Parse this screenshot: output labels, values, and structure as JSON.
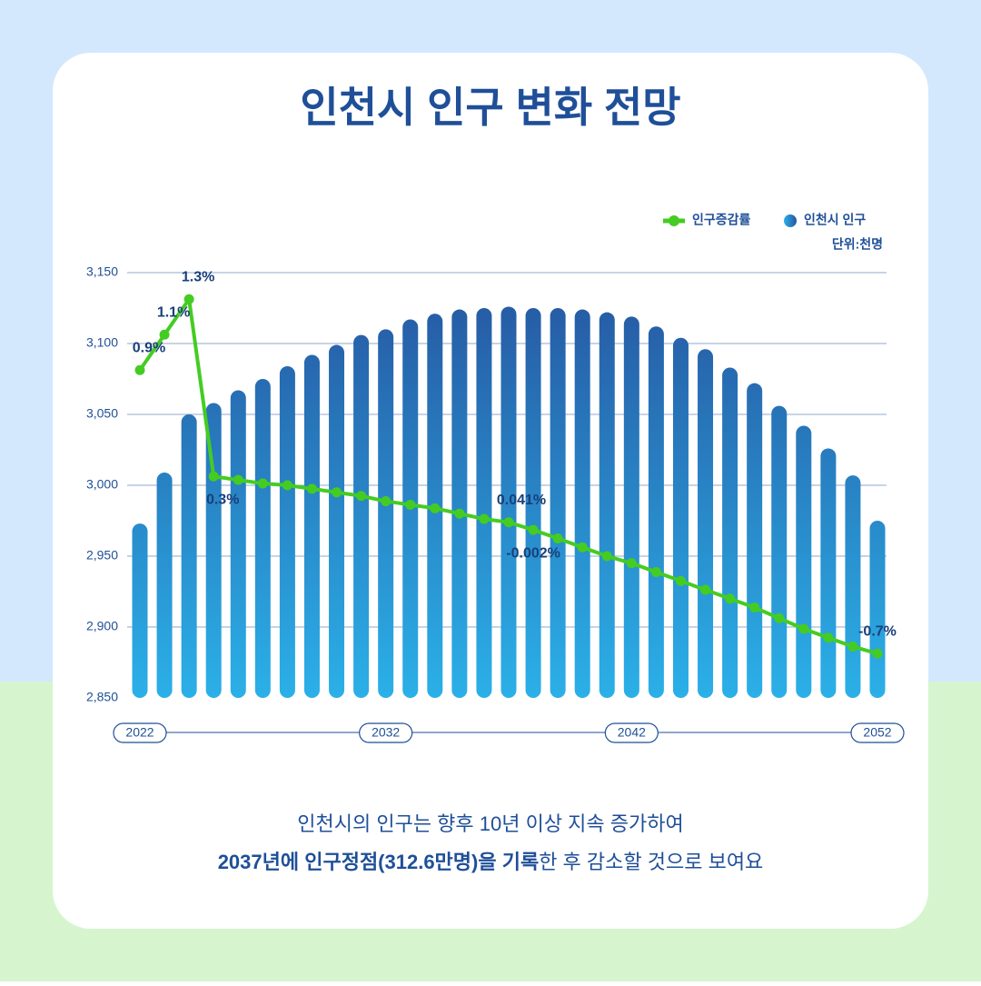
{
  "chart_data": {
    "type": "bar",
    "title": "인천시 인구 변화 전망",
    "unit_label": "단위:천명",
    "categories": [
      "2022",
      null,
      null,
      null,
      null,
      null,
      null,
      null,
      null,
      null,
      "2032",
      null,
      null,
      null,
      null,
      null,
      null,
      null,
      null,
      null,
      "2042",
      null,
      null,
      null,
      null,
      null,
      null,
      null,
      null,
      null,
      "2052"
    ],
    "series": [
      {
        "name": "인구증감률",
        "type": "line",
        "axis": "y2",
        "color": "#44cc22",
        "values": [
          0.9,
          1.1,
          1.3,
          0.3,
          0.28,
          0.26,
          0.25,
          0.23,
          0.21,
          0.19,
          0.16,
          0.14,
          0.12,
          0.09,
          0.06,
          0.041,
          -0.002,
          -0.05,
          -0.1,
          -0.15,
          -0.19,
          -0.24,
          -0.29,
          -0.34,
          -0.39,
          -0.44,
          -0.5,
          -0.56,
          -0.61,
          -0.66,
          -0.7
        ],
        "value_labels": [
          "0.9%",
          "1.1%",
          "1.3%",
          "0.3%",
          null,
          null,
          null,
          null,
          null,
          null,
          null,
          null,
          null,
          null,
          null,
          "0.041%",
          "-0.002%",
          null,
          null,
          null,
          null,
          null,
          null,
          null,
          null,
          null,
          null,
          null,
          null,
          null,
          "-0.7%"
        ]
      },
      {
        "name": "인천시 인구",
        "type": "bar",
        "color": "#2a8fd6",
        "values": [
          2973,
          3009,
          3050,
          3058,
          3067,
          3075,
          3084,
          3092,
          3099,
          3106,
          3110,
          3117,
          3121,
          3124,
          3125,
          3126,
          3125,
          3125,
          3124,
          3122,
          3119,
          3112,
          3104,
          3096,
          3083,
          3072,
          3056,
          3042,
          3026,
          3007,
          2975
        ]
      }
    ],
    "ylim": [
      2850,
      3150
    ],
    "yticks": [
      {
        "value": 2850,
        "label": "2,850"
      },
      {
        "value": 2900,
        "label": "2,900"
      },
      {
        "value": 2950,
        "label": "2,950"
      },
      {
        "value": 3000,
        "label": "3,000"
      },
      {
        "value": 3050,
        "label": "3,050"
      },
      {
        "value": 3100,
        "label": "3,100"
      },
      {
        "value": 3150,
        "label": "3,150"
      }
    ],
    "y2lim": [
      -0.95,
      1.45
    ],
    "grid": true,
    "legend": "top-right",
    "caption": {
      "line1": "인천시의 인구는 향후 10년 이상 지속 증가하여",
      "line2_bold": "2037년에 인구정점(312.6만명)을 기록",
      "line2_rest": "한 후 감소할 것으로 보여요"
    }
  }
}
